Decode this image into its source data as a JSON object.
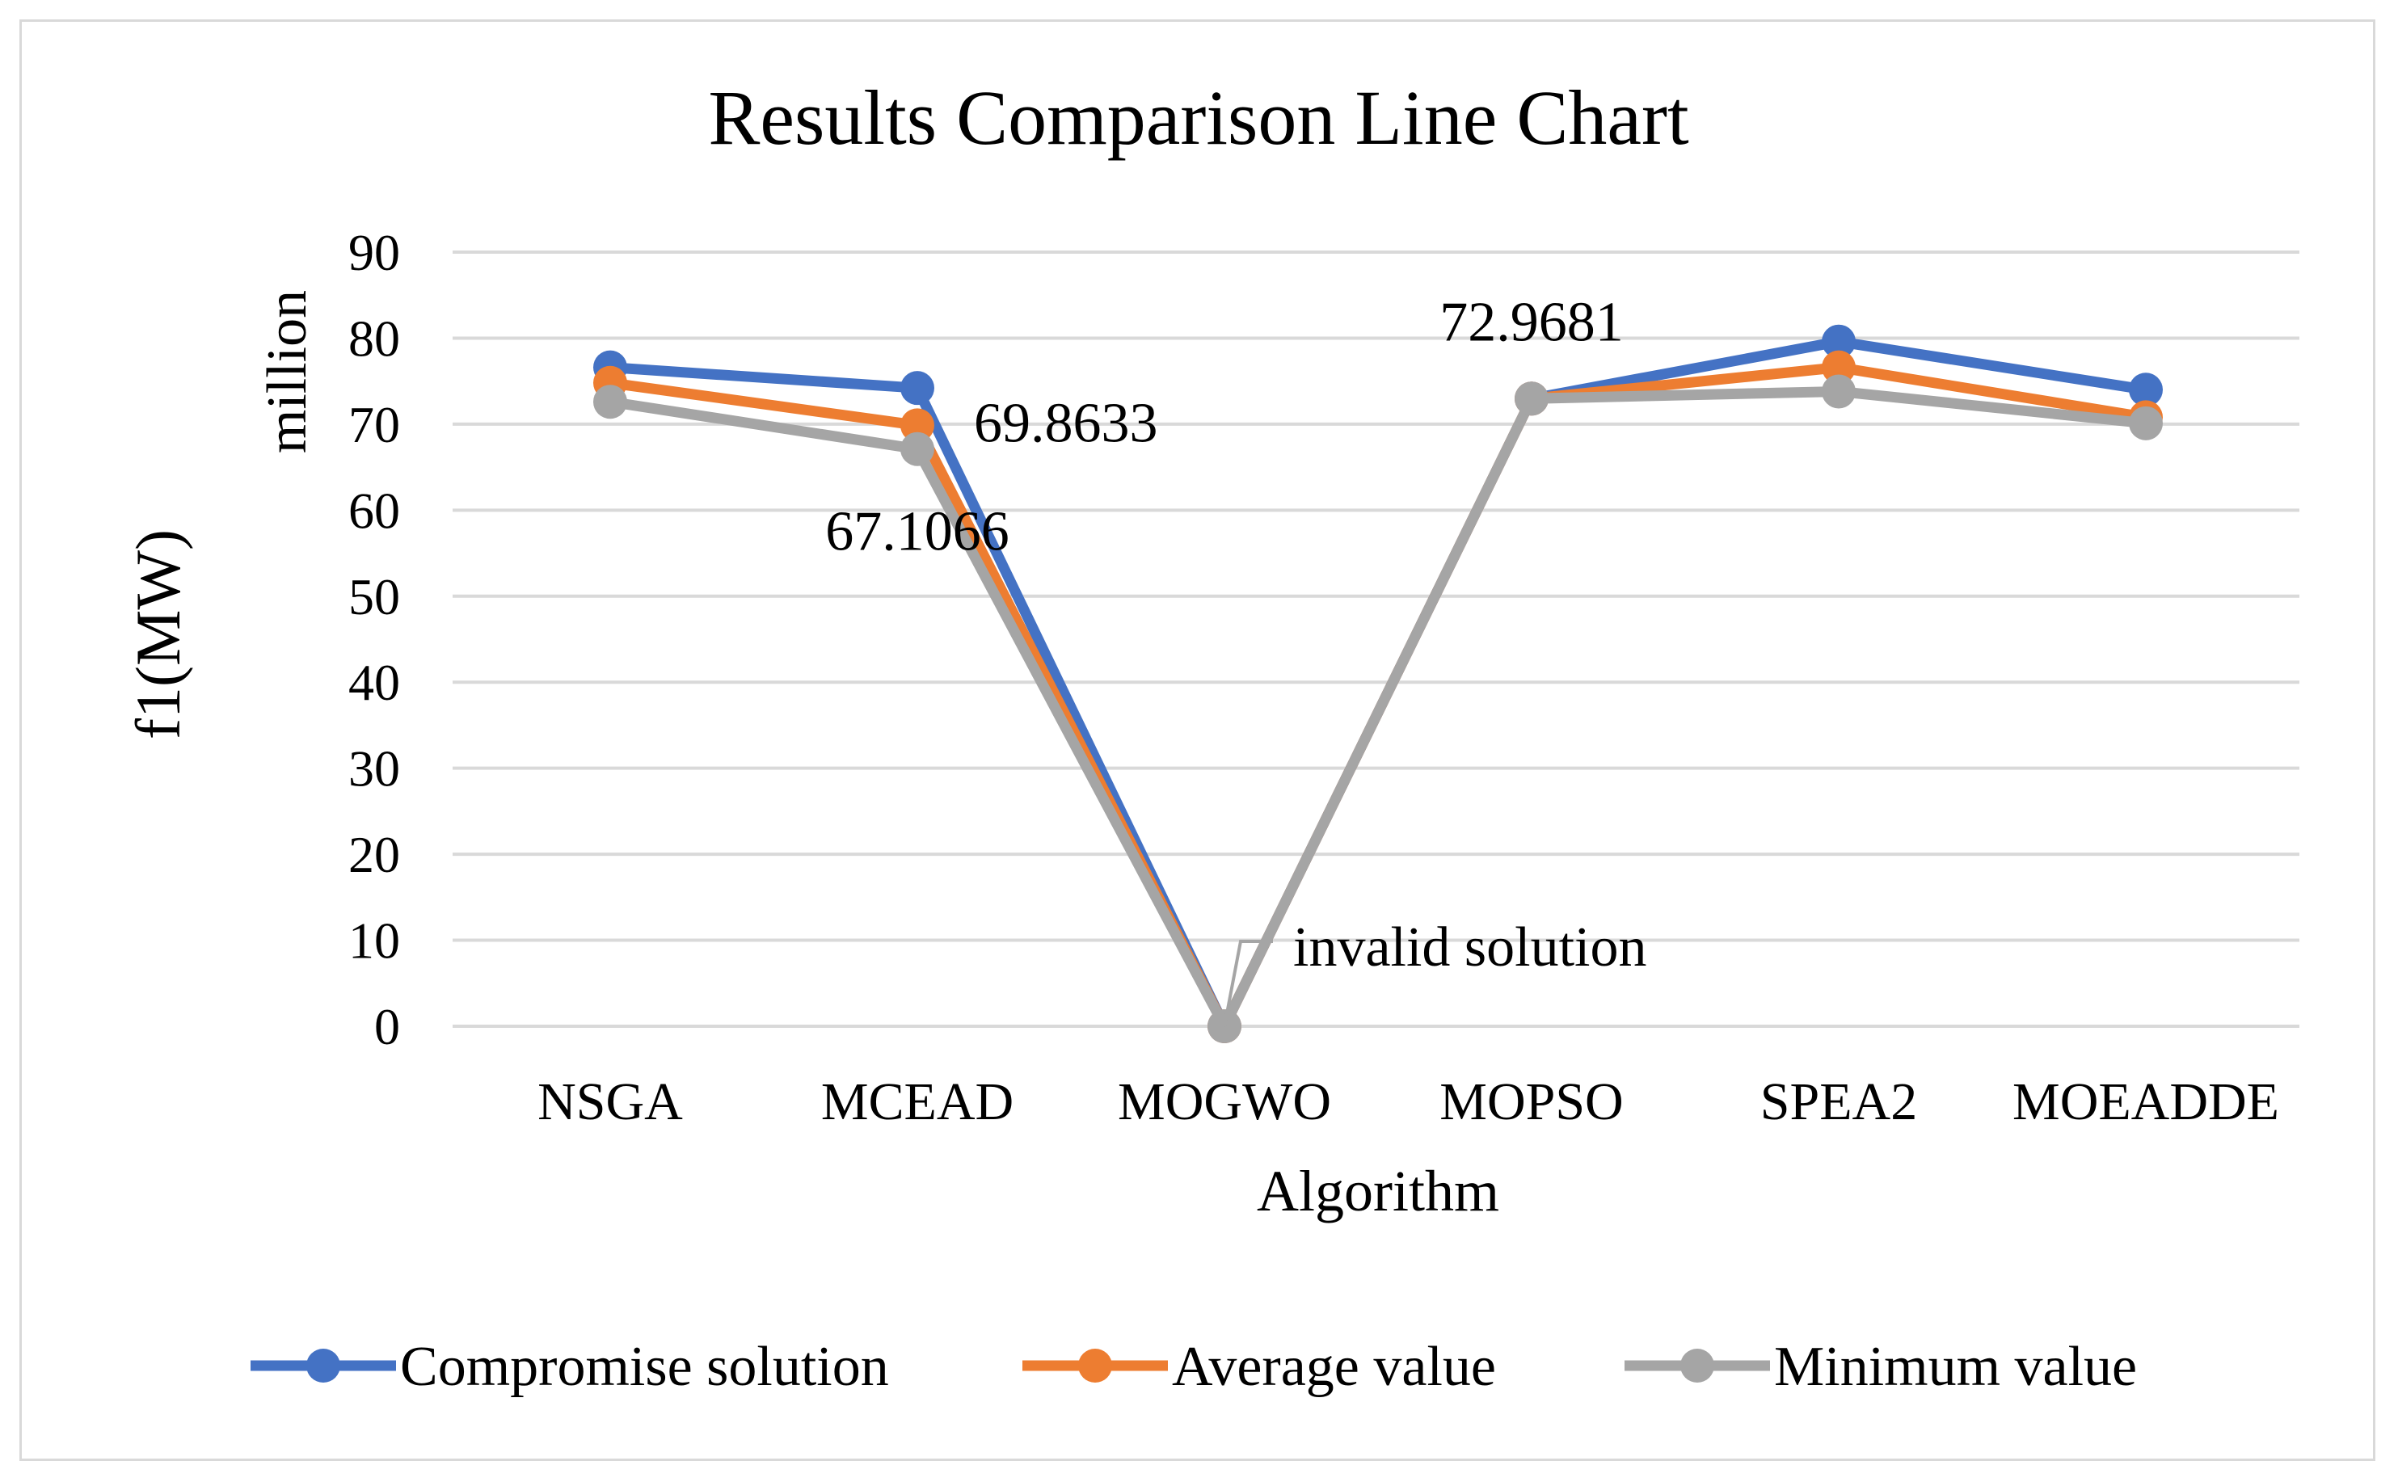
{
  "chart_data": {
    "type": "line",
    "title": "Results Comparison Line Chart",
    "xlabel": "Algorithm",
    "ylabel": "f1(MW)",
    "y_unit_label": "million",
    "ylim": [
      0,
      90
    ],
    "yticks": [
      0,
      10,
      20,
      30,
      40,
      50,
      60,
      70,
      80,
      90
    ],
    "grid": true,
    "legend_position": "bottom",
    "categories": [
      "NSGA",
      "MCEAD",
      "MOGWO",
      "MOPSO",
      "SPEA2",
      "MOEADDE"
    ],
    "series": [
      {
        "name": "Compromise solution",
        "color": "#4472c4",
        "values": [
          76.6,
          74.2,
          0,
          72.9681,
          79.6,
          74.0
        ]
      },
      {
        "name": "Average value",
        "color": "#ed7d31",
        "values": [
          74.8,
          69.8633,
          0,
          72.9681,
          76.6,
          70.8
        ]
      },
      {
        "name": "Minimum value",
        "color": "#a5a5a5",
        "values": [
          72.6,
          67.1066,
          0,
          72.9681,
          73.8,
          70.1
        ]
      }
    ],
    "annotations": [
      {
        "text": "69.8633",
        "category": "MCEAD",
        "series": "Average value"
      },
      {
        "text": "67.1066",
        "category": "MCEAD",
        "series": "Minimum value"
      },
      {
        "text": "72.9681",
        "category": "MOPSO",
        "series": "Minimum value"
      },
      {
        "text": "invalid solution",
        "category": "MOGWO",
        "series": "Minimum value"
      }
    ]
  }
}
